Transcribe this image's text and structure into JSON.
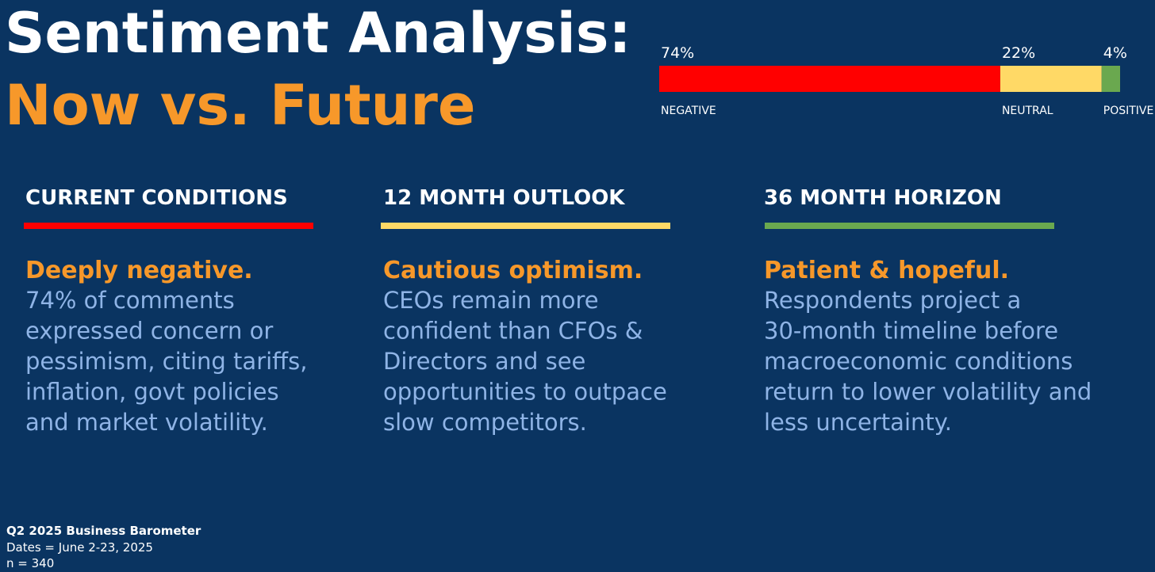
{
  "title": "Sentiment Analysis:",
  "subtitle": "Now vs. Future",
  "chart_data": {
    "type": "stacked-bar",
    "series": [
      {
        "name": "NEGATIVE",
        "color": "#ff0000",
        "values": [
          74
        ],
        "value_labels": [
          "74%"
        ]
      },
      {
        "name": "NEUTRAL",
        "color": "#ffd966",
        "values": [
          22
        ],
        "value_labels": [
          "22%"
        ]
      },
      {
        "name": "POSITIVE",
        "color": "#6aa84f",
        "values": [
          4
        ],
        "value_labels": [
          "4%"
        ]
      }
    ]
  },
  "columns": [
    {
      "heading": "CURRENT CONDITIONS",
      "color": "#ff0000",
      "lead": "Deeply negative.",
      "lines": [
        "74% of comments",
        "expressed concern or",
        "pessimism, citing tariffs,",
        "inflation, govt policies",
        "and market volatility."
      ]
    },
    {
      "heading": "12 MONTH OUTLOOK",
      "color": "#ffd966",
      "lead": "Cautious optimism.",
      "lines": [
        "CEOs remain more",
        "confident than CFOs &",
        "Directors and see",
        "opportunities to outpace",
        "slow competitors."
      ]
    },
    {
      "heading": "36 MONTH HORIZON",
      "color": "#6aa84f",
      "lead": "Patient & hopeful.",
      "lines": [
        "Respondents project a",
        "30-month timeline before",
        "macroeconomic conditions",
        "return to lower volatility and",
        "less uncertainty."
      ]
    }
  ],
  "footer": {
    "title": "Q2 2025 Business Barometer",
    "dates": "Dates = June 2-23, 2025",
    "n": "n =  340"
  }
}
